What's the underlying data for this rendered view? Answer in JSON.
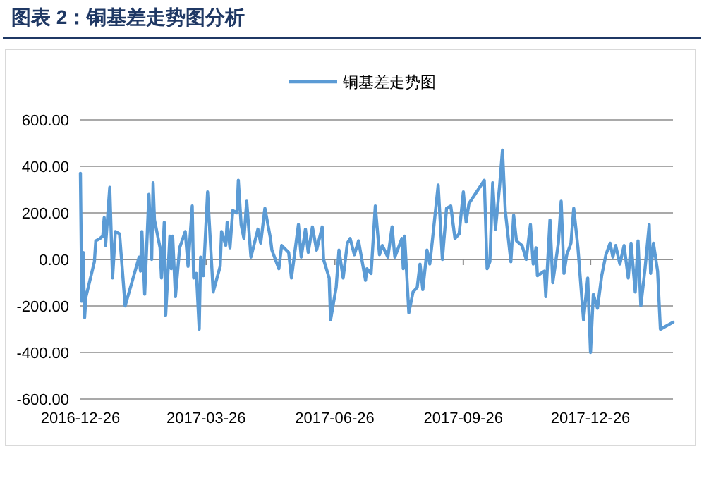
{
  "chart_data": {
    "type": "line",
    "title": "图表 2：铜基差走势图分析",
    "x": [
      "2016-12-26",
      "2016-12-27",
      "2016-12-28",
      "2016-12-29",
      "2016-12-30",
      "2017-01-03",
      "2017-01-05",
      "2017-01-06",
      "2017-01-09",
      "2017-01-11",
      "2017-01-12",
      "2017-01-13",
      "2017-01-16",
      "2017-01-18",
      "2017-01-20",
      "2017-01-23",
      "2017-01-27",
      "2017-02-06",
      "2017-02-07",
      "2017-02-08",
      "2017-02-10",
      "2017-02-13",
      "2017-02-15",
      "2017-02-16",
      "2017-02-17",
      "2017-02-21",
      "2017-02-22",
      "2017-02-24",
      "2017-02-25",
      "2017-02-28",
      "2017-03-01",
      "2017-03-02",
      "2017-03-04",
      "2017-03-07",
      "2017-03-11",
      "2017-03-13",
      "2017-03-16",
      "2017-03-17",
      "2017-03-19",
      "2017-03-21",
      "2017-03-22",
      "2017-03-24",
      "2017-03-27",
      "2017-03-31",
      "2017-04-05",
      "2017-04-06",
      "2017-04-09",
      "2017-04-10",
      "2017-04-12",
      "2017-04-14",
      "2017-04-17",
      "2017-04-18",
      "2017-04-20",
      "2017-04-22",
      "2017-04-24",
      "2017-04-27",
      "2017-05-02",
      "2017-05-04",
      "2017-05-07",
      "2017-05-11",
      "2017-05-12",
      "2017-05-17",
      "2017-05-19",
      "2017-05-24",
      "2017-05-26",
      "2017-05-31",
      "2017-06-02",
      "2017-06-05",
      "2017-06-07",
      "2017-06-10",
      "2017-06-13",
      "2017-06-17",
      "2017-06-18",
      "2017-06-22",
      "2017-06-23",
      "2017-06-27",
      "2017-06-29",
      "2017-07-02",
      "2017-07-05",
      "2017-07-07",
      "2017-07-10",
      "2017-07-13",
      "2017-07-18",
      "2017-07-19",
      "2017-07-22",
      "2017-07-25",
      "2017-07-28",
      "2017-07-30",
      "2017-08-03",
      "2017-08-06",
      "2017-08-08",
      "2017-08-13",
      "2017-08-14",
      "2017-08-15",
      "2017-08-18",
      "2017-08-21",
      "2017-08-24",
      "2017-08-26",
      "2017-08-28",
      "2017-08-31",
      "2017-09-02",
      "2017-09-04",
      "2017-09-08",
      "2017-09-11",
      "2017-09-14",
      "2017-09-17",
      "2017-09-20",
      "2017-09-23",
      "2017-09-26",
      "2017-09-28",
      "2017-09-30",
      "2017-10-11",
      "2017-10-13",
      "2017-10-15",
      "2017-10-17",
      "2017-10-19",
      "2017-10-22",
      "2017-10-24",
      "2017-10-26",
      "2017-10-30",
      "2017-11-01",
      "2017-11-03",
      "2017-11-07",
      "2017-11-10",
      "2017-11-13",
      "2017-11-15",
      "2017-11-17",
      "2017-11-18",
      "2017-11-23",
      "2017-11-24",
      "2017-11-27",
      "2017-11-29",
      "2017-12-03",
      "2017-12-05",
      "2017-12-07",
      "2017-12-09",
      "2017-12-12",
      "2017-12-14",
      "2017-12-17",
      "2017-12-21",
      "2017-12-24",
      "2017-12-26",
      "2017-12-28",
      "2017-12-31",
      "2018-01-03",
      "2018-01-06",
      "2018-01-09",
      "2018-01-11",
      "2018-01-13",
      "2018-01-16",
      "2018-01-19",
      "2018-01-22",
      "2018-01-24",
      "2018-01-27",
      "2018-01-29",
      "2018-01-31",
      "2018-02-03",
      "2018-02-06",
      "2018-02-07",
      "2018-02-09",
      "2018-02-12",
      "2018-02-14",
      "2018-02-23"
    ],
    "series": [
      {
        "name": "铜基差走势图",
        "color": "#5b9bd5",
        "values": [
          370,
          -180,
          30,
          -250,
          -160,
          -60,
          -10,
          80,
          90,
          100,
          180,
          60,
          310,
          -80,
          120,
          110,
          -200,
          10,
          -50,
          120,
          -150,
          280,
          0,
          330,
          170,
          50,
          -80,
          160,
          -240,
          100,
          -40,
          100,
          -160,
          50,
          120,
          -30,
          230,
          -80,
          -60,
          -300,
          10,
          -70,
          290,
          -140,
          -30,
          120,
          60,
          160,
          50,
          210,
          200,
          340,
          150,
          90,
          250,
          10,
          130,
          70,
          220,
          90,
          40,
          -40,
          60,
          30,
          -80,
          150,
          10,
          130,
          30,
          140,
          40,
          140,
          0,
          -80,
          -260,
          -120,
          40,
          -80,
          70,
          90,
          20,
          80,
          -90,
          -40,
          -60,
          230,
          20,
          60,
          10,
          140,
          10,
          90,
          -40,
          100,
          -230,
          -140,
          -120,
          -20,
          -130,
          40,
          -20,
          90,
          320,
          0,
          220,
          230,
          90,
          110,
          290,
          160,
          240,
          340,
          -40,
          -10,
          330,
          130,
          320,
          470,
          210,
          -10,
          190,
          80,
          60,
          0,
          150,
          -20,
          50,
          -70,
          -50,
          -160,
          170,
          -100,
          70,
          250,
          -60,
          20,
          70,
          220,
          50,
          -260,
          -80,
          -400,
          -150,
          -210,
          -70,
          20,
          70,
          10,
          60,
          -20,
          60,
          -80,
          70,
          -140,
          80,
          -200,
          -40,
          150,
          -60,
          70,
          -50,
          -300,
          -270
        ]
      }
    ],
    "xlim": [
      "2016-12-26",
      "2018-02-23"
    ],
    "xticks": [
      "2016-12-26",
      "2017-03-26",
      "2017-06-26",
      "2017-09-26",
      "2017-12-26"
    ],
    "ylim": [
      -600,
      600
    ],
    "yticks": [
      {
        "value": -600,
        "label": "-600.00"
      },
      {
        "value": -400,
        "label": "-400.00"
      },
      {
        "value": -200,
        "label": "-200.00"
      },
      {
        "value": 0,
        "label": "0.00"
      },
      {
        "value": 200,
        "label": "200.00"
      },
      {
        "value": 400,
        "label": "400.00"
      },
      {
        "value": 600,
        "label": "600.00"
      }
    ],
    "grid": "y",
    "legend": "top",
    "marker": "none",
    "line_style": "solid"
  }
}
